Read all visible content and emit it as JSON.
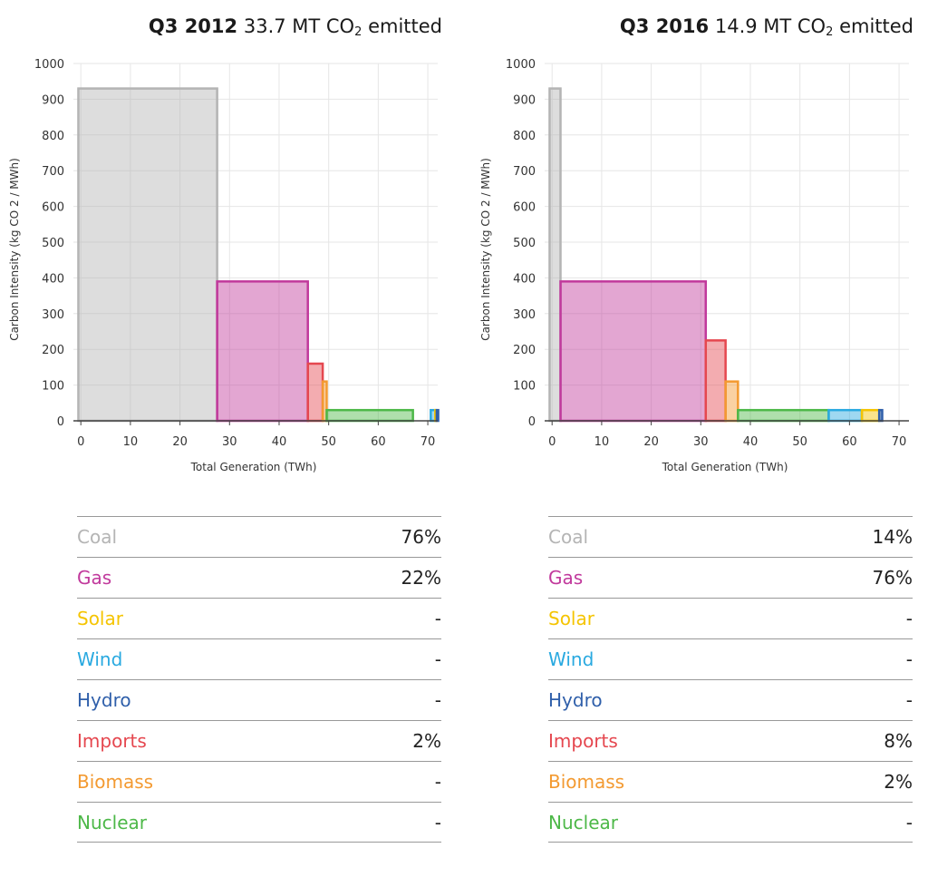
{
  "colors": {
    "Coal": "#b4b4b4",
    "Gas": "#c1399c",
    "Solar": "#f5c400",
    "Wind": "#29a9e0",
    "Hydro": "#2f5faa",
    "Imports": "#e5474f",
    "Biomass": "#f39a31",
    "Nuclear": "#4db848"
  },
  "panels": [
    {
      "title_bold": "Q3 2012",
      "title_value": "33.7 MT CO",
      "title_sub": "2",
      "title_suffix": "emitted",
      "shares": [
        {
          "source": "Coal",
          "value": "76%"
        },
        {
          "source": "Gas",
          "value": "22%"
        },
        {
          "source": "Solar",
          "value": "-"
        },
        {
          "source": "Wind",
          "value": "-"
        },
        {
          "source": "Hydro",
          "value": "-"
        },
        {
          "source": "Imports",
          "value": "2%"
        },
        {
          "source": "Biomass",
          "value": "-"
        },
        {
          "source": "Nuclear",
          "value": "-"
        }
      ]
    },
    {
      "title_bold": "Q3 2016",
      "title_value": "14.9 MT CO",
      "title_sub": "2",
      "title_suffix": "emitted",
      "shares": [
        {
          "source": "Coal",
          "value": "14%"
        },
        {
          "source": "Gas",
          "value": "76%"
        },
        {
          "source": "Solar",
          "value": "-"
        },
        {
          "source": "Wind",
          "value": "-"
        },
        {
          "source": "Hydro",
          "value": "-"
        },
        {
          "source": "Imports",
          "value": "8%"
        },
        {
          "source": "Biomass",
          "value": "2%"
        },
        {
          "source": "Nuclear",
          "value": "-"
        }
      ]
    }
  ],
  "chart_data": [
    {
      "type": "bar",
      "title": "Q3 2012 33.7 MT CO2 emitted",
      "xlabel": "Total Generation (TWh)",
      "ylabel": "Carbon Intensity (kg CO 2 / MWh)",
      "xlim": [
        -1.5,
        72
      ],
      "ylim": [
        0,
        1000
      ],
      "xticks": [
        0,
        10,
        20,
        30,
        40,
        50,
        60,
        70
      ],
      "yticks": [
        0,
        100,
        200,
        300,
        400,
        500,
        600,
        700,
        800,
        900,
        1000
      ],
      "grid": true,
      "bars": [
        {
          "source": "Coal",
          "x0": -0.5,
          "x1": 27.5,
          "y": 930
        },
        {
          "source": "Gas",
          "x0": 27.5,
          "x1": 45.8,
          "y": 390
        },
        {
          "source": "Imports",
          "x0": 45.8,
          "x1": 48.8,
          "y": 160
        },
        {
          "source": "Biomass",
          "x0": 48.8,
          "x1": 49.6,
          "y": 110
        },
        {
          "source": "Nuclear",
          "x0": 49.6,
          "x1": 67.0,
          "y": 30
        },
        {
          "source": "Solar",
          "x0": 67.0,
          "x1": 70.6,
          "y": 0
        },
        {
          "source": "Wind",
          "x0": 70.6,
          "x1": 71.5,
          "y": 30
        },
        {
          "source": "Solar",
          "x0": 71.5,
          "x1": 71.8,
          "y": 30
        },
        {
          "source": "Hydro",
          "x0": 71.8,
          "x1": 72.1,
          "y": 30
        }
      ]
    },
    {
      "type": "bar",
      "title": "Q3 2016 14.9 MT CO2 emitted",
      "xlabel": "Total Generation (TWh)",
      "ylabel": "Carbon Intensity (kg CO 2 / MWh)",
      "xlim": [
        -1.5,
        72
      ],
      "ylim": [
        0,
        1000
      ],
      "xticks": [
        0,
        10,
        20,
        30,
        40,
        50,
        60,
        70
      ],
      "yticks": [
        0,
        100,
        200,
        300,
        400,
        500,
        600,
        700,
        800,
        900,
        1000
      ],
      "grid": true,
      "bars": [
        {
          "source": "Coal",
          "x0": -0.5,
          "x1": 1.7,
          "y": 930
        },
        {
          "source": "Gas",
          "x0": 1.7,
          "x1": 31.0,
          "y": 390
        },
        {
          "source": "Imports",
          "x0": 31.0,
          "x1": 35.0,
          "y": 225
        },
        {
          "source": "Biomass",
          "x0": 35.0,
          "x1": 37.5,
          "y": 110
        },
        {
          "source": "Nuclear",
          "x0": 37.5,
          "x1": 55.8,
          "y": 30
        },
        {
          "source": "Wind",
          "x0": 55.8,
          "x1": 62.5,
          "y": 30
        },
        {
          "source": "Solar",
          "x0": 62.5,
          "x1": 66.0,
          "y": 30
        },
        {
          "source": "Hydro",
          "x0": 66.0,
          "x1": 66.6,
          "y": 30
        }
      ]
    }
  ]
}
